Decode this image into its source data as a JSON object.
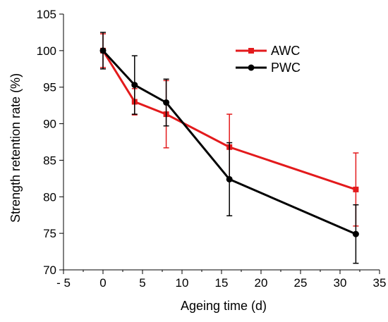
{
  "chart_data": {
    "type": "line",
    "title": "",
    "xlabel": "Ageing time (d)",
    "ylabel": "Strength retention rate (%)",
    "xlim": [
      -5,
      35
    ],
    "ylim": [
      70,
      105
    ],
    "x_ticks": [
      -5,
      0,
      5,
      10,
      15,
      20,
      25,
      30,
      35
    ],
    "x_tick_labels": [
      "- 5",
      "0",
      "5",
      "10",
      "15",
      "20",
      "25",
      "30",
      "35"
    ],
    "y_ticks": [
      70,
      75,
      80,
      85,
      90,
      95,
      100,
      105
    ],
    "y_tick_labels": [
      "70",
      "75",
      "80",
      "85",
      "90",
      "95",
      "100",
      "105"
    ],
    "grid": false,
    "legend_position": "top-right",
    "series": [
      {
        "name": "AWC",
        "color": "#e31a1c",
        "marker": "square",
        "x": [
          0,
          4,
          8,
          16,
          32
        ],
        "y": [
          100,
          93.0,
          91.3,
          86.8,
          81.0
        ],
        "err": [
          2.3,
          1.8,
          4.6,
          4.5,
          5.0
        ]
      },
      {
        "name": "PWC",
        "color": "#000000",
        "marker": "circle",
        "x": [
          0,
          4,
          8,
          16,
          32
        ],
        "y": [
          100,
          95.3,
          92.9,
          82.4,
          74.9
        ],
        "err": [
          2.5,
          4.0,
          3.2,
          5.0,
          4.0
        ]
      }
    ]
  }
}
